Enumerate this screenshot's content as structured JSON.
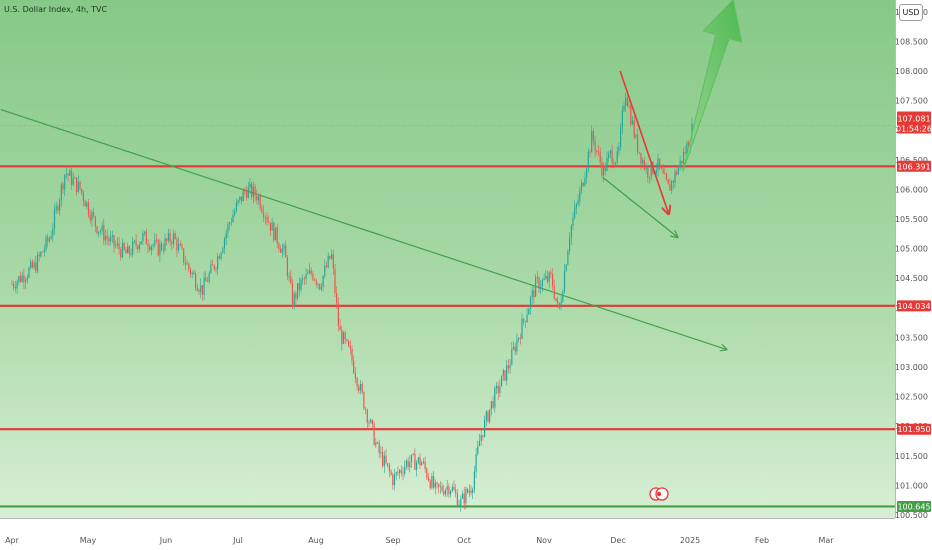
{
  "chart_data": {
    "type": "candlestick",
    "title": "U.S. Dollar Index, 4h, TVC",
    "currency": "USD",
    "x_labels": [
      "Apr",
      "May",
      "Jun",
      "Jul",
      "Aug",
      "Sep",
      "Oct",
      "Nov",
      "Dec",
      "2025",
      "Feb",
      "Mar"
    ],
    "y_ticks": [
      "100.500",
      "101.000",
      "101.500",
      "102.000",
      "102.500",
      "103.000",
      "103.500",
      "104.000",
      "104.500",
      "105.000",
      "105.500",
      "106.000",
      "106.500",
      "107.000",
      "107.500",
      "108.000",
      "108.500",
      "109.000"
    ],
    "ylim": [
      100.45,
      109.2
    ],
    "current_price": "107.081",
    "countdown": "01:54:26",
    "levels": [
      {
        "value": 106.391,
        "label": "106.391",
        "color": "#e53935"
      },
      {
        "value": 104.034,
        "label": "104.034",
        "color": "#e53935"
      },
      {
        "value": 101.95,
        "label": "101.950",
        "color": "#e53935"
      },
      {
        "value": 100.645,
        "label": "100.645",
        "color": "#43a047"
      }
    ],
    "price_path": [
      [
        0,
        104.4
      ],
      [
        0.3,
        104.7
      ],
      [
        0.5,
        105.2
      ],
      [
        0.7,
        106.3
      ],
      [
        0.9,
        106.0
      ],
      [
        1.1,
        105.4
      ],
      [
        1.3,
        105.1
      ],
      [
        1.5,
        104.9
      ],
      [
        1.7,
        105.2
      ],
      [
        1.9,
        105.0
      ],
      [
        2.1,
        105.2
      ],
      [
        2.3,
        104.7
      ],
      [
        2.5,
        104.3
      ],
      [
        2.7,
        104.8
      ],
      [
        2.9,
        105.5
      ],
      [
        3.1,
        106.0
      ],
      [
        3.25,
        105.9
      ],
      [
        3.45,
        105.3
      ],
      [
        3.6,
        104.9
      ],
      [
        3.7,
        104.1
      ],
      [
        3.8,
        104.4
      ],
      [
        3.95,
        104.6
      ],
      [
        4.05,
        104.4
      ],
      [
        4.2,
        104.9
      ],
      [
        4.3,
        103.6
      ],
      [
        4.45,
        103.2
      ],
      [
        4.6,
        102.5
      ],
      [
        4.8,
        101.6
      ],
      [
        5.0,
        101.1
      ],
      [
        5.2,
        101.4
      ],
      [
        5.4,
        101.4
      ],
      [
        5.6,
        100.9
      ],
      [
        5.8,
        101.0
      ],
      [
        5.95,
        100.7
      ],
      [
        6.1,
        101.0
      ],
      [
        6.2,
        101.8
      ],
      [
        6.35,
        102.4
      ],
      [
        6.55,
        103.0
      ],
      [
        6.75,
        103.8
      ],
      [
        6.9,
        104.4
      ],
      [
        7.1,
        104.5
      ],
      [
        7.2,
        103.9
      ],
      [
        7.35,
        105.3
      ],
      [
        7.5,
        106.0
      ],
      [
        7.65,
        106.9
      ],
      [
        7.8,
        106.3
      ],
      [
        7.9,
        106.6
      ],
      [
        8.0,
        106.5
      ],
      [
        8.1,
        107.7
      ],
      [
        8.25,
        106.8
      ],
      [
        8.4,
        106.3
      ],
      [
        8.55,
        106.4
      ],
      [
        8.7,
        106.0
      ],
      [
        8.85,
        106.4
      ],
      [
        8.95,
        106.7
      ],
      [
        9.05,
        107.1
      ]
    ],
    "trendline": {
      "from": [
        -0.15,
        107.35
      ],
      "to": [
        9.5,
        103.3
      ]
    },
    "annotations": {
      "red_arrow": {
        "from": [
          8.03,
          108.0
        ],
        "to": [
          8.7,
          105.6
        ]
      },
      "green_small_arrow": {
        "from": [
          7.8,
          106.2
        ],
        "to": [
          8.82,
          105.2
        ]
      },
      "big_green_arrow": {
        "from": [
          8.9,
          106.3
        ],
        "to": [
          9.6,
          109.2
        ]
      }
    },
    "grid": false,
    "legend": "none"
  }
}
